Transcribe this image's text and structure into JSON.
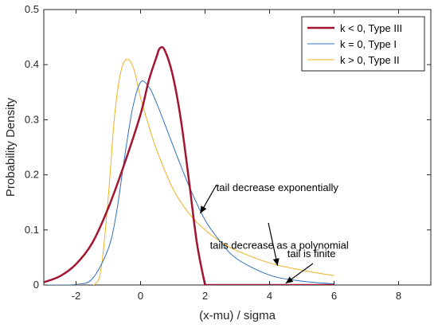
{
  "chart_data": {
    "type": "line",
    "xlabel": "(x-mu) / sigma",
    "ylabel": "Probability Density",
    "xlim": [
      -3,
      9
    ],
    "ylim": [
      0,
      0.5
    ],
    "xticks": [
      "-2",
      "0",
      "2",
      "4",
      "6",
      "8"
    ],
    "yticks": [
      "0",
      "0.1",
      "0.2",
      "0.3",
      "0.4",
      "0.5"
    ],
    "grid": false,
    "legend_position": "top-right",
    "colors": {
      "axis": "#262626"
    },
    "series": [
      {
        "name": "k < 0, Type III",
        "color": "#a2142f",
        "x": [
          -3,
          -2.5,
          -2,
          -1.5,
          -1,
          -0.5,
          0,
          0.25,
          0.5,
          0.6,
          0.75,
          1,
          1.25,
          1.5,
          1.75,
          2,
          2.5,
          3,
          4,
          5,
          6
        ],
        "y": [
          0.005,
          0.016,
          0.038,
          0.076,
          0.14,
          0.22,
          0.31,
          0.37,
          0.415,
          0.43,
          0.426,
          0.38,
          0.3,
          0.19,
          0.075,
          0,
          0,
          0,
          0,
          0,
          0
        ]
      },
      {
        "name": "k = 0, Type I",
        "color": "#2e6fbd",
        "x": [
          -3,
          -2.5,
          -2,
          -1.5,
          -1,
          -0.75,
          -0.5,
          -0.25,
          0,
          0.25,
          0.5,
          1,
          1.5,
          2,
          2.5,
          3,
          4,
          5,
          6
        ],
        "y": [
          0,
          0,
          0.001,
          0.011,
          0.066,
          0.13,
          0.23,
          0.32,
          0.368,
          0.36,
          0.33,
          0.254,
          0.18,
          0.118,
          0.077,
          0.047,
          0.018,
          0.007,
          0.002
        ]
      },
      {
        "name": "k > 0, Type II",
        "color": "#edb120",
        "x": [
          -3,
          -2,
          -1.4,
          -1.2,
          -1,
          -0.8,
          -0.6,
          -0.4,
          -0.2,
          0,
          0.25,
          0.5,
          1,
          1.5,
          2,
          2.5,
          3,
          4,
          5,
          6
        ],
        "y": [
          0,
          0,
          0.002,
          0.04,
          0.16,
          0.31,
          0.39,
          0.41,
          0.39,
          0.34,
          0.29,
          0.245,
          0.175,
          0.13,
          0.1,
          0.078,
          0.062,
          0.04,
          0.027,
          0.017
        ]
      }
    ],
    "annotations": [
      {
        "text": "tail decrease exponentially",
        "x": 2.35,
        "y": 0.165,
        "arrow_to": [
          1.85,
          0.13
        ]
      },
      {
        "text": "tails decrease as a polynomial",
        "x": 2.15,
        "y": 0.06,
        "arrow_to": [
          4.25,
          0.035
        ]
      },
      {
        "text": "tail is finite",
        "x": 4.55,
        "y": 0.045,
        "arrow_to": [
          4.5,
          0.003
        ]
      }
    ]
  }
}
